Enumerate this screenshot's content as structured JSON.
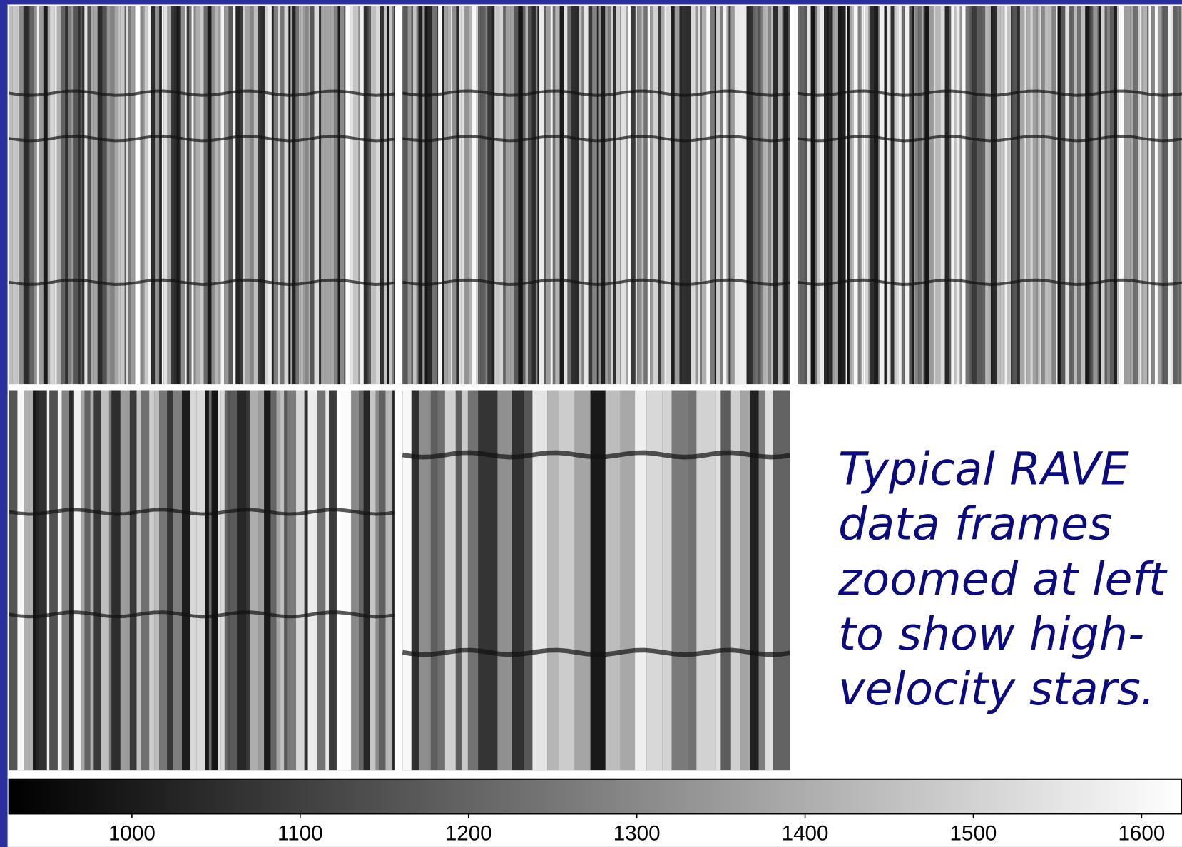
{
  "caption": {
    "lines": [
      "Typical RAVE",
      "data frames",
      "zoomed at left",
      "to show high-",
      "velocity stars."
    ]
  },
  "colorbar": {
    "lim": [
      927,
      1624
    ],
    "ticks": [
      1000,
      1100,
      1200,
      1300,
      1400,
      1500,
      1600
    ]
  }
}
